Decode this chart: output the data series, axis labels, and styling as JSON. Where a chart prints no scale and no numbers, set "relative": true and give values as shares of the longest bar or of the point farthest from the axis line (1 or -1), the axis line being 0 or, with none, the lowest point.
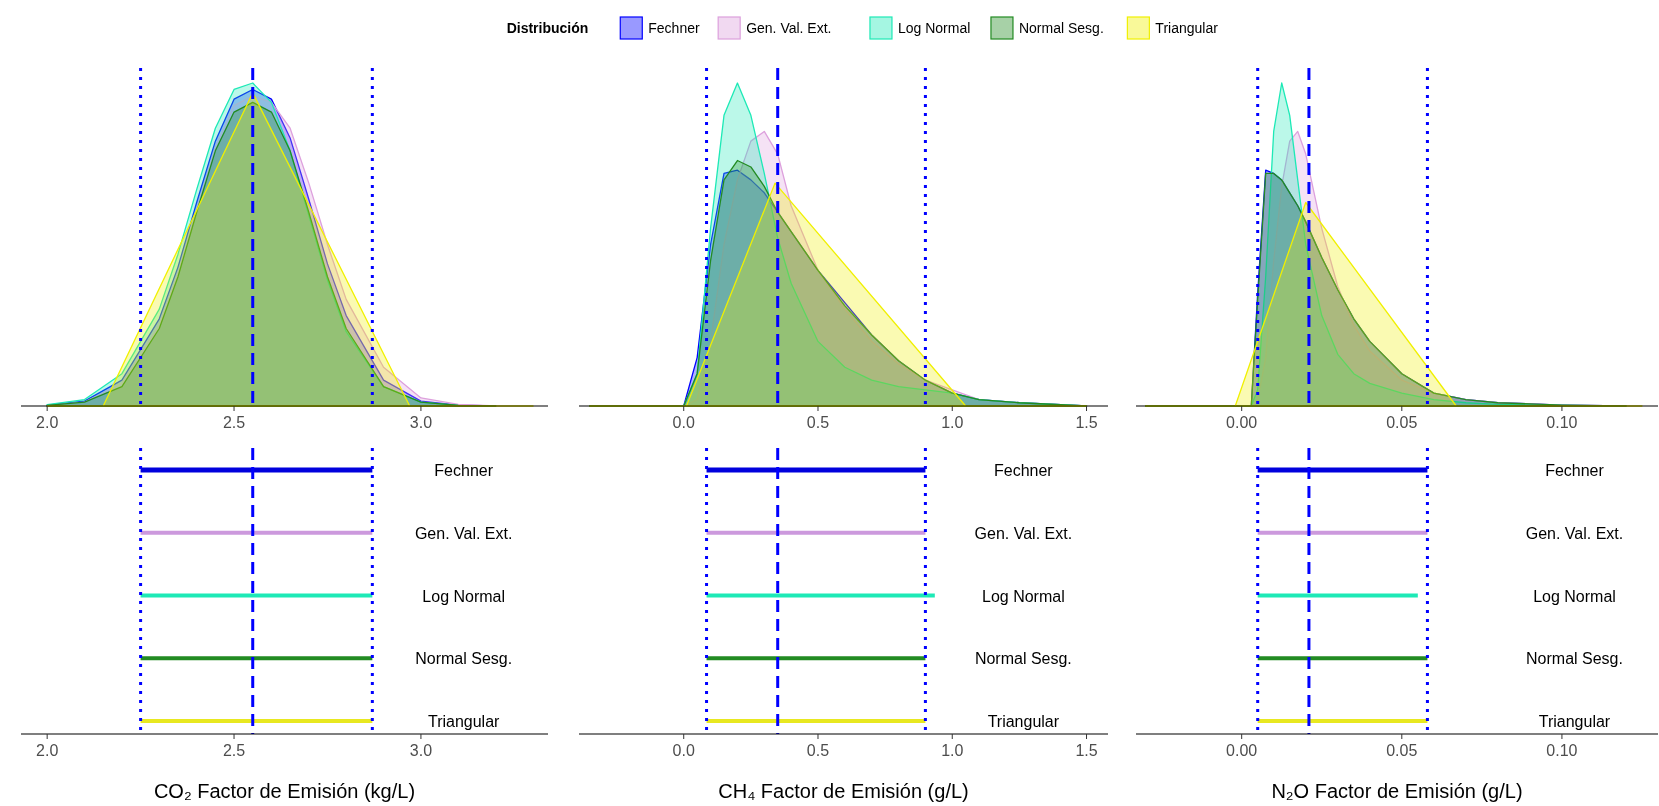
{
  "chart_data": [
    {
      "type": "area",
      "relative": true,
      "xlim": [
        1.93,
        3.34
      ],
      "xticks": [
        {
          "value": 2,
          "label": "2.0"
        },
        {
          "value": 2.5,
          "label": "2.5"
        },
        {
          "value": 3,
          "label": "3.0"
        }
      ],
      "x": [
        2.0,
        2.1,
        2.2,
        2.3,
        2.35,
        2.4,
        2.45,
        2.5,
        2.55,
        2.6,
        2.65,
        2.7,
        2.75,
        2.8,
        2.9,
        3.0,
        3.1,
        3.2
      ],
      "series": [
        {
          "color": "#0000ff",
          "values": [
            0.003,
            0.015,
            0.08,
            0.27,
            0.43,
            0.63,
            0.82,
            0.95,
            0.98,
            0.95,
            0.83,
            0.64,
            0.44,
            0.28,
            0.08,
            0.015,
            0.003,
            0
          ]
        },
        {
          "color": "#dda0dd",
          "values": [
            0.002,
            0.012,
            0.07,
            0.25,
            0.41,
            0.61,
            0.8,
            0.93,
            0.96,
            0.94,
            0.86,
            0.69,
            0.5,
            0.33,
            0.12,
            0.025,
            0.005,
            0
          ]
        },
        {
          "color": "#1de9b6",
          "values": [
            0.004,
            0.02,
            0.1,
            0.3,
            0.47,
            0.67,
            0.86,
            0.98,
            1,
            0.94,
            0.79,
            0.59,
            0.39,
            0.23,
            0.06,
            0.012,
            0.002,
            0
          ]
        },
        {
          "color": "#228b22",
          "values": [
            0.002,
            0.012,
            0.06,
            0.24,
            0.4,
            0.6,
            0.79,
            0.91,
            0.94,
            0.91,
            0.79,
            0.6,
            0.4,
            0.24,
            0.06,
            0.012,
            0.002,
            0
          ]
        },
        {
          "color": "#f0f000",
          "x": [
            2.0,
            2.15,
            2.55,
            2.97,
            3.3
          ],
          "values": [
            0,
            0,
            0.97,
            0,
            0
          ]
        }
      ],
      "ref_lines": [
        {
          "axis": "x",
          "value": 2.25,
          "color": "#0000ff",
          "line_style": "dotted"
        },
        {
          "axis": "x",
          "value": 2.55,
          "color": "#0000ff",
          "line_style": "dashed"
        },
        {
          "axis": "x",
          "value": 2.87,
          "color": "#0000ff",
          "line_style": "dotted"
        }
      ]
    },
    {
      "type": "area",
      "relative": true,
      "legend": "top",
      "legend_title": "Distribución",
      "xlim": [
        -0.39,
        1.58
      ],
      "xticks": [
        {
          "value": 0,
          "label": "0.0"
        },
        {
          "value": 0.5,
          "label": "0.5"
        },
        {
          "value": 1,
          "label": "1.0"
        },
        {
          "value": 1.5,
          "label": "1.5"
        }
      ],
      "x": [
        -0.35,
        0.0,
        0.05,
        0.1,
        0.15,
        0.2,
        0.25,
        0.3,
        0.35,
        0.4,
        0.5,
        0.6,
        0.7,
        0.8,
        0.9,
        1.0,
        1.1,
        1.25,
        1.5
      ],
      "series": [
        {
          "name": "Fechner",
          "color": "#0000ff",
          "values": [
            0,
            0,
            0.15,
            0.5,
            0.72,
            0.73,
            0.7,
            0.66,
            0.6,
            0.54,
            0.42,
            0.32,
            0.22,
            0.14,
            0.08,
            0.04,
            0.02,
            0.01,
            0
          ]
        },
        {
          "name": "Gen. Val. Ext.",
          "color": "#dda0dd",
          "values": [
            0,
            0,
            0.02,
            0.2,
            0.5,
            0.7,
            0.82,
            0.85,
            0.78,
            0.62,
            0.42,
            0.3,
            0.2,
            0.13,
            0.08,
            0.05,
            0.02,
            0.01,
            0
          ]
        },
        {
          "name": "Log Normal",
          "color": "#1de9b6",
          "values": [
            0,
            0,
            0.1,
            0.55,
            0.9,
            1,
            0.9,
            0.72,
            0.52,
            0.38,
            0.2,
            0.12,
            0.08,
            0.06,
            0.05,
            0.04,
            0.02,
            0.01,
            0
          ]
        },
        {
          "name": "Normal Sesg.",
          "color": "#228b22",
          "values": [
            0,
            0,
            0.1,
            0.45,
            0.7,
            0.76,
            0.74,
            0.68,
            0.6,
            0.54,
            0.42,
            0.31,
            0.22,
            0.14,
            0.08,
            0.04,
            0.02,
            0.01,
            0
          ]
        },
        {
          "name": "Triangular",
          "color": "#f0f000",
          "x": [
            -0.35,
            0.01,
            0.34,
            1.05,
            1.5
          ],
          "values": [
            0,
            0,
            0.69,
            0,
            0
          ]
        }
      ],
      "ref_lines": [
        {
          "axis": "x",
          "value": 0.085,
          "color": "#0000ff",
          "line_style": "dotted"
        },
        {
          "axis": "x",
          "value": 0.35,
          "color": "#0000ff",
          "line_style": "dashed"
        },
        {
          "axis": "x",
          "value": 0.9,
          "color": "#0000ff",
          "line_style": "dotted"
        }
      ]
    },
    {
      "type": "area",
      "relative": true,
      "xlim": [
        -0.033,
        0.13
      ],
      "xticks": [
        {
          "value": 0,
          "label": "0.00"
        },
        {
          "value": 0.05,
          "label": "0.05"
        },
        {
          "value": 0.1,
          "label": "0.10"
        }
      ],
      "x": [
        -0.03,
        0.003,
        0.005,
        0.0075,
        0.01,
        0.0125,
        0.015,
        0.0175,
        0.02,
        0.025,
        0.03,
        0.035,
        0.04,
        0.05,
        0.06,
        0.07,
        0.08,
        0.1,
        0.12
      ],
      "series": [
        {
          "color": "#0000ff",
          "values": [
            0,
            0,
            0.35,
            0.73,
            0.72,
            0.7,
            0.66,
            0.62,
            0.57,
            0.46,
            0.36,
            0.27,
            0.2,
            0.1,
            0.04,
            0.02,
            0.01,
            0.003,
            0
          ]
        },
        {
          "color": "#dda0dd",
          "values": [
            0,
            0,
            0.02,
            0.15,
            0.45,
            0.68,
            0.82,
            0.85,
            0.78,
            0.55,
            0.37,
            0.25,
            0.17,
            0.08,
            0.04,
            0.02,
            0.01,
            0.003,
            0
          ]
        },
        {
          "color": "#1de9b6",
          "values": [
            0,
            0,
            0.05,
            0.4,
            0.85,
            1,
            0.9,
            0.7,
            0.5,
            0.28,
            0.16,
            0.1,
            0.07,
            0.04,
            0.02,
            0.01,
            0.005,
            0.002,
            0
          ]
        },
        {
          "color": "#228b22",
          "values": [
            0,
            0,
            0.33,
            0.72,
            0.72,
            0.7,
            0.66,
            0.62,
            0.57,
            0.46,
            0.36,
            0.27,
            0.2,
            0.1,
            0.04,
            0.02,
            0.01,
            0.003,
            0
          ]
        },
        {
          "color": "#f0f000",
          "x": [
            -0.03,
            -0.002,
            0.02,
            0.067,
            0.125
          ],
          "values": [
            0,
            0,
            0.63,
            0,
            0
          ]
        }
      ],
      "ref_lines": [
        {
          "axis": "x",
          "value": 0.005,
          "color": "#0000ff",
          "line_style": "dotted"
        },
        {
          "axis": "x",
          "value": 0.021,
          "color": "#0000ff",
          "line_style": "dashed"
        },
        {
          "axis": "x",
          "value": 0.058,
          "color": "#0000ff",
          "line_style": "dotted"
        }
      ]
    },
    {
      "type": "bar",
      "orientation": "horizontal",
      "xlabel": "CO₂ Factor de Emisión (kg/L)",
      "xlim": [
        1.93,
        3.34
      ],
      "xticks": [
        {
          "value": 2,
          "label": "2.0"
        },
        {
          "value": 2.5,
          "label": "2.5"
        },
        {
          "value": 3,
          "label": "3.0"
        }
      ],
      "categories": [
        "Fechner",
        "Gen. Val. Ext.",
        "Log Normal",
        "Normal Sesg.",
        "Triangular"
      ],
      "base": [
        2.25,
        2.25,
        2.25,
        2.25,
        2.25
      ],
      "values": [
        0.62,
        0.62,
        0.62,
        0.62,
        0.62
      ],
      "colors": [
        "#0000dd",
        "#cc99dd",
        "#1de9b6",
        "#228b22",
        "#e8e820"
      ],
      "ref_lines": [
        {
          "axis": "x",
          "value": 2.25,
          "color": "#0000ff",
          "line_style": "dotted"
        },
        {
          "axis": "x",
          "value": 2.55,
          "color": "#0000ff",
          "line_style": "dashed"
        },
        {
          "axis": "x",
          "value": 2.87,
          "color": "#0000ff",
          "line_style": "dotted"
        }
      ]
    },
    {
      "type": "bar",
      "orientation": "horizontal",
      "xlabel": "CH₄ Factor de Emisión (g/L)",
      "xlim": [
        -0.39,
        1.58
      ],
      "xticks": [
        {
          "value": 0,
          "label": "0.0"
        },
        {
          "value": 0.5,
          "label": "0.5"
        },
        {
          "value": 1,
          "label": "1.0"
        },
        {
          "value": 1.5,
          "label": "1.5"
        }
      ],
      "categories": [
        "Fechner",
        "Gen. Val. Ext.",
        "Log Normal",
        "Normal Sesg.",
        "Triangular"
      ],
      "base": [
        0.085,
        0.085,
        0.085,
        0.085,
        0.085
      ],
      "values": [
        0.815,
        0.815,
        0.85,
        0.815,
        0.815
      ],
      "colors": [
        "#0000dd",
        "#cc99dd",
        "#1de9b6",
        "#228b22",
        "#e8e820"
      ],
      "ref_lines": [
        {
          "axis": "x",
          "value": 0.085,
          "color": "#0000ff",
          "line_style": "dotted"
        },
        {
          "axis": "x",
          "value": 0.35,
          "color": "#0000ff",
          "line_style": "dashed"
        },
        {
          "axis": "x",
          "value": 0.9,
          "color": "#0000ff",
          "line_style": "dotted"
        }
      ]
    },
    {
      "type": "bar",
      "orientation": "horizontal",
      "xlabel": "N₂O Factor de Emisión (g/L)",
      "xlim": [
        -0.033,
        0.13
      ],
      "xticks": [
        {
          "value": 0,
          "label": "0.00"
        },
        {
          "value": 0.05,
          "label": "0.05"
        },
        {
          "value": 0.1,
          "label": "0.10"
        }
      ],
      "categories": [
        "Fechner",
        "Gen. Val. Ext.",
        "Log Normal",
        "Normal Sesg.",
        "Triangular"
      ],
      "base": [
        0.005,
        0.005,
        0.005,
        0.005,
        0.005
      ],
      "values": [
        0.053,
        0.053,
        0.05,
        0.053,
        0.053
      ],
      "colors": [
        "#0000dd",
        "#cc99dd",
        "#1de9b6",
        "#228b22",
        "#e8e820"
      ],
      "ref_lines": [
        {
          "axis": "x",
          "value": 0.005,
          "color": "#0000ff",
          "line_style": "dotted"
        },
        {
          "axis": "x",
          "value": 0.021,
          "color": "#0000ff",
          "line_style": "dashed"
        },
        {
          "axis": "x",
          "value": 0.058,
          "color": "#0000ff",
          "line_style": "dotted"
        }
      ]
    }
  ]
}
